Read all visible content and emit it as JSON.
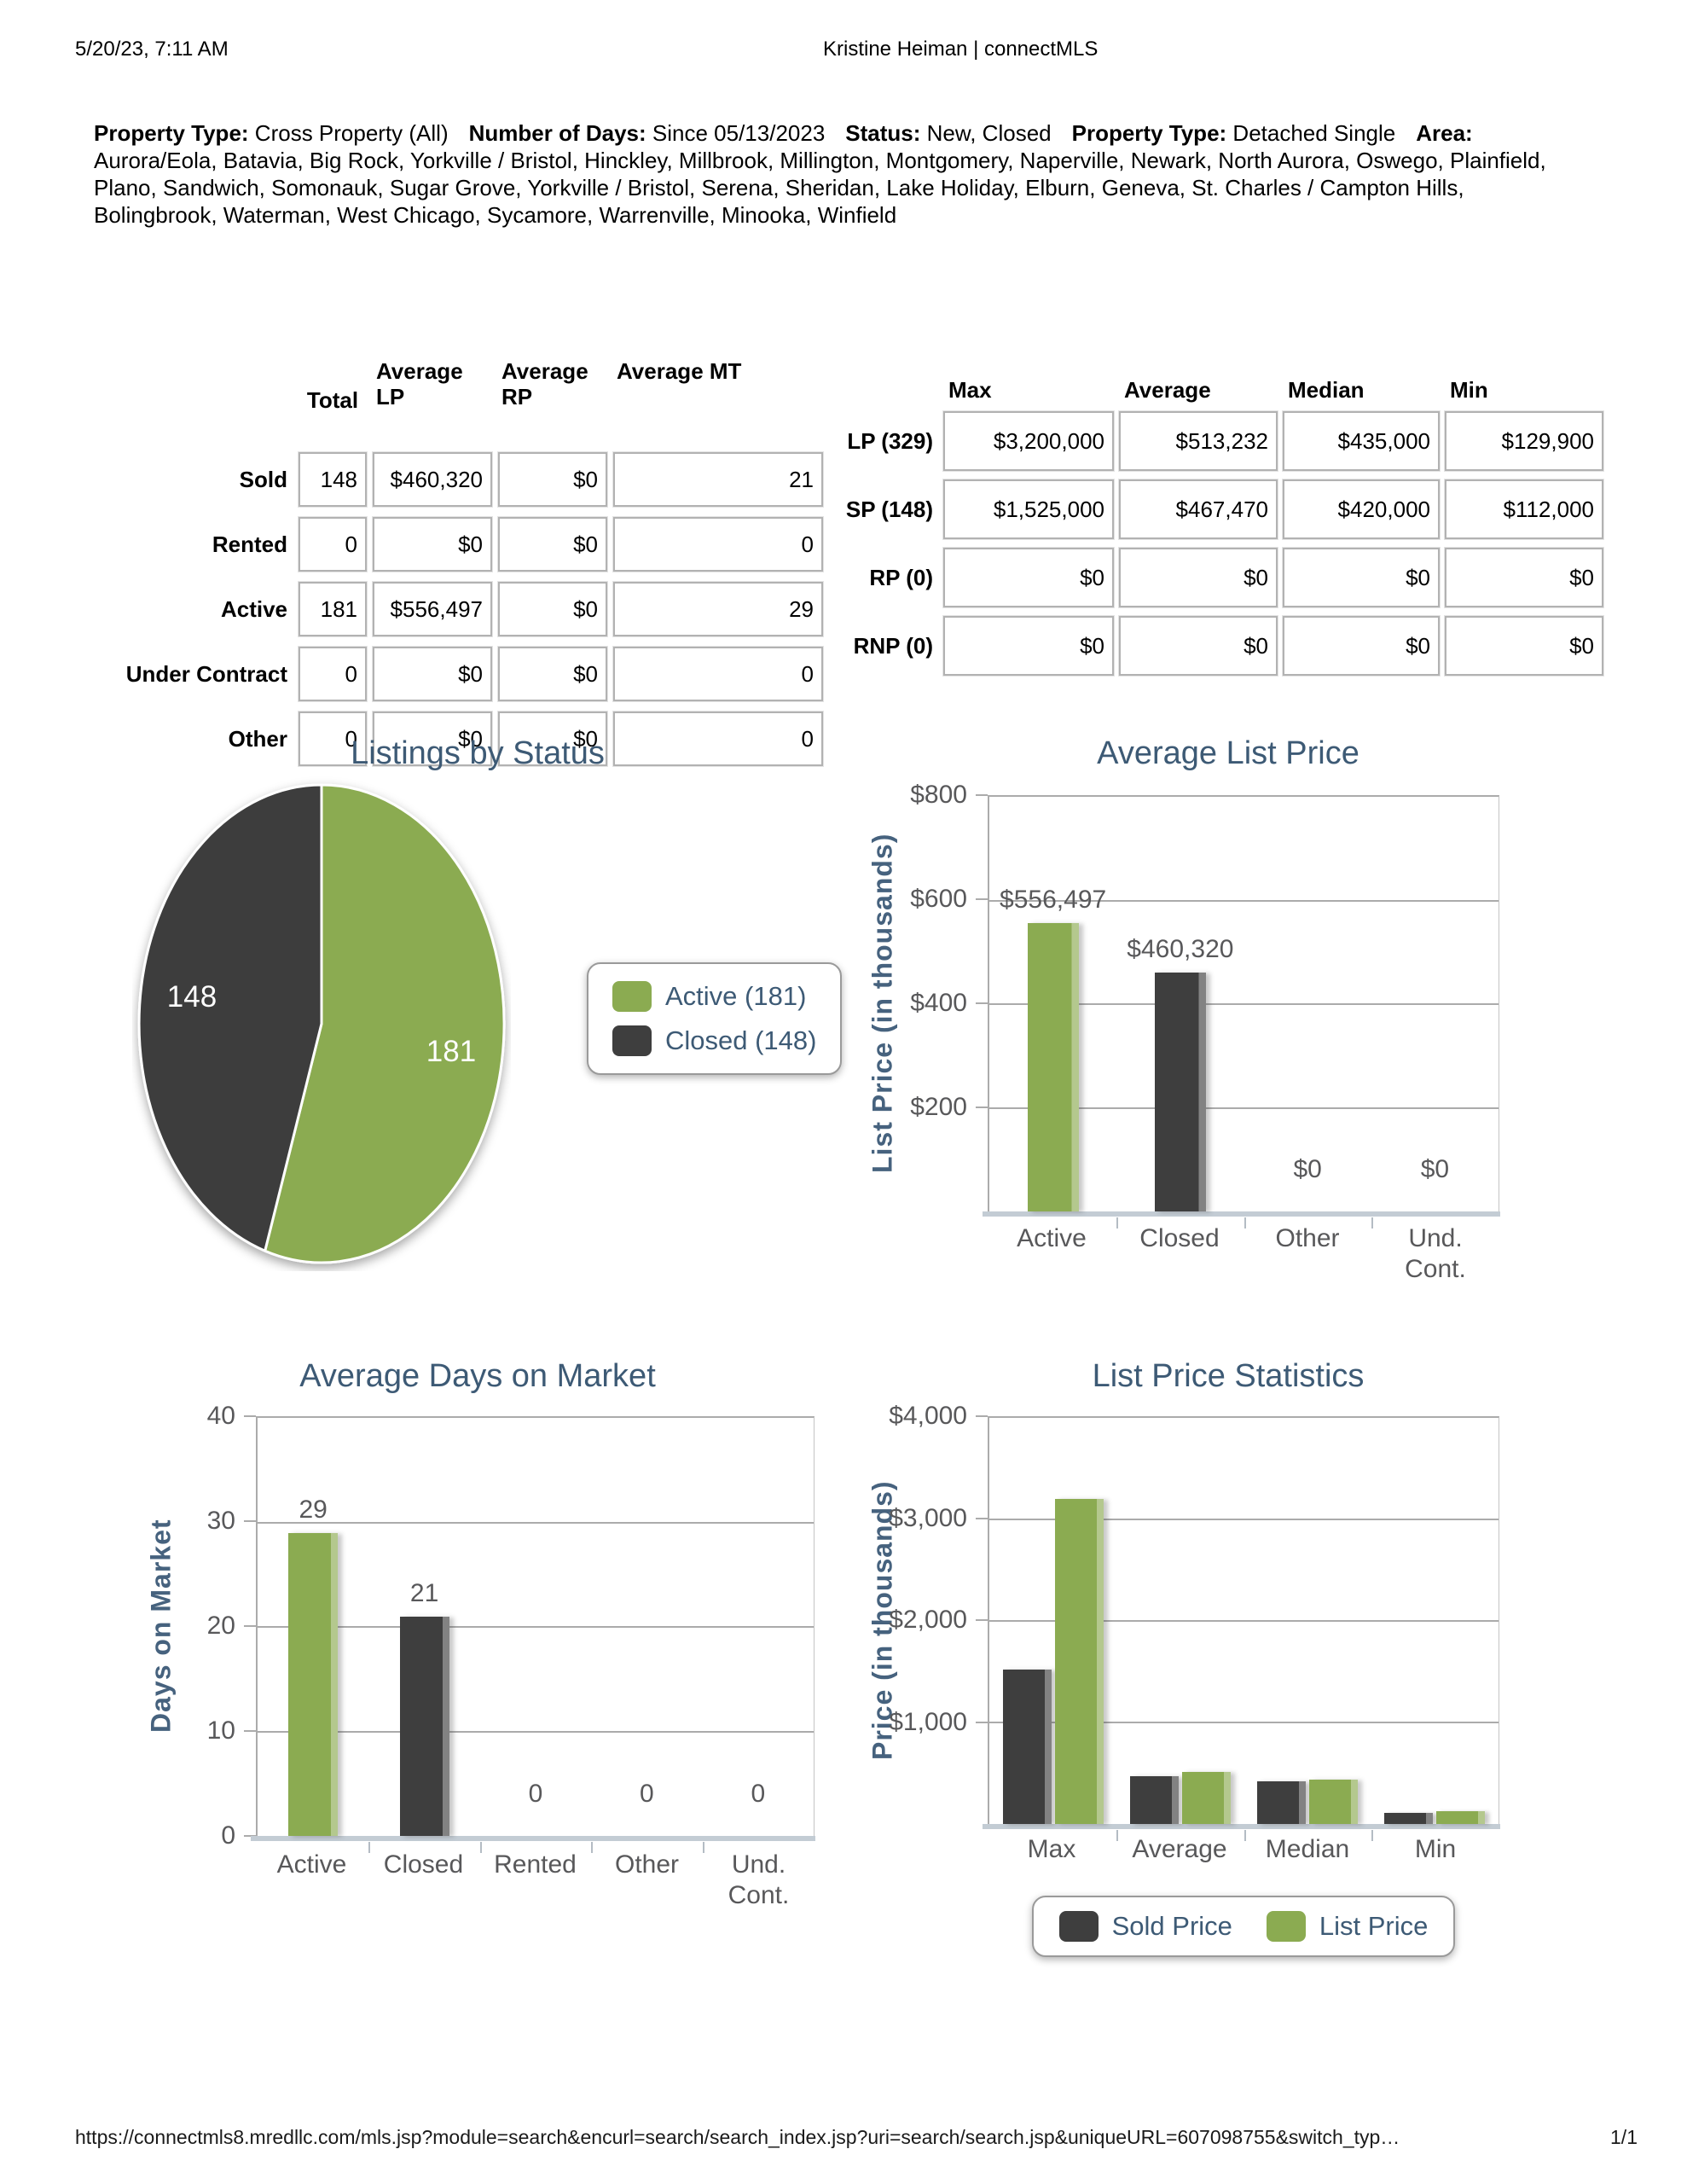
{
  "page": {
    "printed_at": "5/20/23, 7:11 AM",
    "header_title": "Kristine Heiman | connectMLS",
    "footer_url": "https://connectmls8.mredllc.com/mls.jsp?module=search&encurl=search/search_index.jsp?uri=search/search.jsp&uniqueURL=607098755&switch_typ…",
    "page_number": "1/1"
  },
  "filters": {
    "segments": [
      {
        "label": "Property Type:",
        "value": "Cross Property (All)"
      },
      {
        "label": "Number of Days:",
        "value": "Since 05/13/2023"
      },
      {
        "label": "Status:",
        "value": "New, Closed"
      },
      {
        "label": "Property Type:",
        "value": "Detached Single"
      },
      {
        "label": "Area:",
        "value": "Aurora/Eola, Batavia, Big Rock, Yorkville / Bristol, Hinckley, Millbrook, Millington, Montgomery, Naperville, Newark, North Aurora, Oswego, Plainfield, Plano, Sandwich, Somonauk, Sugar Grove, Yorkville / Bristol, Serena, Sheridan, Lake Holiday, Elburn, Geneva, St. Charles / Campton Hills, Bolingbrook, Waterman, West Chicago, Sycamore, Warrenville, Minooka, Winfield"
      }
    ]
  },
  "status_table": {
    "columns": [
      "Total",
      "Average LP",
      "Average RP",
      "Average MT"
    ],
    "rows": [
      {
        "label": "Sold",
        "cells": [
          "148",
          "$460,320",
          "$0",
          "21"
        ]
      },
      {
        "label": "Rented",
        "cells": [
          "0",
          "$0",
          "$0",
          "0"
        ]
      },
      {
        "label": "Active",
        "cells": [
          "181",
          "$556,497",
          "$0",
          "29"
        ]
      },
      {
        "label": "Under Contract",
        "cells": [
          "0",
          "$0",
          "$0",
          "0"
        ]
      },
      {
        "label": "Other",
        "cells": [
          "0",
          "$0",
          "$0",
          "0"
        ]
      }
    ]
  },
  "price_table": {
    "columns": [
      "Max",
      "Average",
      "Median",
      "Min"
    ],
    "rows": [
      {
        "label": "LP (329)",
        "cells": [
          "$3,200,000",
          "$513,232",
          "$435,000",
          "$129,900"
        ]
      },
      {
        "label": "SP (148)",
        "cells": [
          "$1,525,000",
          "$467,470",
          "$420,000",
          "$112,000"
        ]
      },
      {
        "label": "RP (0)",
        "cells": [
          "$0",
          "$0",
          "$0",
          "$0"
        ]
      },
      {
        "label": "RNP (0)",
        "cells": [
          "$0",
          "$0",
          "$0",
          "$0"
        ]
      }
    ]
  },
  "colors": {
    "active_green": "#8bab51",
    "closed_dark": "#3e3e3e",
    "title_slate": "#3d5a75",
    "axis_title_slate": "#46627e",
    "tick_gray": "#58585a",
    "baseline_bluegray": "#c3ccd4"
  },
  "chart_data": [
    {
      "type": "pie",
      "title": "Listings by Status",
      "slices": [
        {
          "label": "Active",
          "value": 181,
          "color": "#8bab51"
        },
        {
          "label": "Closed",
          "value": 148,
          "color": "#3e3e3e"
        }
      ],
      "legend": [
        "Active (181)",
        "Closed (148)"
      ],
      "legend_position": "right"
    },
    {
      "type": "bar",
      "title": "Average List Price",
      "xlabel": "",
      "ylabel": "List Price (in thousands)",
      "categories": [
        "Active",
        "Closed",
        "Other",
        "Und. Cont."
      ],
      "values": [
        556.497,
        460.32,
        0,
        0
      ],
      "bar_labels": [
        "$556,497",
        "$460,320",
        "$0",
        "$0"
      ],
      "bar_colors": [
        "#8bab51",
        "#3e3e3e",
        null,
        null
      ],
      "ylim": [
        0,
        800
      ],
      "grid": true,
      "yticks": [
        {
          "value": 800,
          "label": "$800"
        },
        {
          "value": 600,
          "label": "$600"
        },
        {
          "value": 400,
          "label": "$400"
        },
        {
          "value": 200,
          "label": "$200"
        }
      ]
    },
    {
      "type": "bar",
      "title": "Average Days on Market",
      "xlabel": "",
      "ylabel": "Days on Market",
      "categories": [
        "Active",
        "Closed",
        "Rented",
        "Other",
        "Und. Cont."
      ],
      "values": [
        29,
        21,
        0,
        0,
        0
      ],
      "bar_labels": [
        "29",
        "21",
        "0",
        "0",
        "0"
      ],
      "bar_colors": [
        "#8bab51",
        "#3e3e3e",
        null,
        null,
        null
      ],
      "ylim": [
        0,
        40
      ],
      "grid": true,
      "yticks": [
        {
          "value": 40,
          "label": "40"
        },
        {
          "value": 30,
          "label": "30"
        },
        {
          "value": 20,
          "label": "20"
        },
        {
          "value": 10,
          "label": "10"
        },
        {
          "value": 0,
          "label": "0"
        }
      ]
    },
    {
      "type": "grouped_bar",
      "title": "List Price Statistics",
      "xlabel": "",
      "ylabel": "Price (in thousands)",
      "categories": [
        "Max",
        "Average",
        "Median",
        "Min"
      ],
      "series": [
        {
          "name": "Sold Price",
          "color": "#3e3e3e",
          "values": [
            1525,
            467.47,
            420,
            112
          ]
        },
        {
          "name": "List Price",
          "color": "#8bab51",
          "values": [
            3200,
            513.232,
            435,
            129.9
          ]
        }
      ],
      "ylim": [
        0,
        4000
      ],
      "grid": true,
      "yticks": [
        {
          "value": 4000,
          "label": "$4,000"
        },
        {
          "value": 3000,
          "label": "$3,000"
        },
        {
          "value": 2000,
          "label": "$2,000"
        },
        {
          "value": 1000,
          "label": "$1,000"
        }
      ],
      "legend_position": "bottom"
    }
  ]
}
